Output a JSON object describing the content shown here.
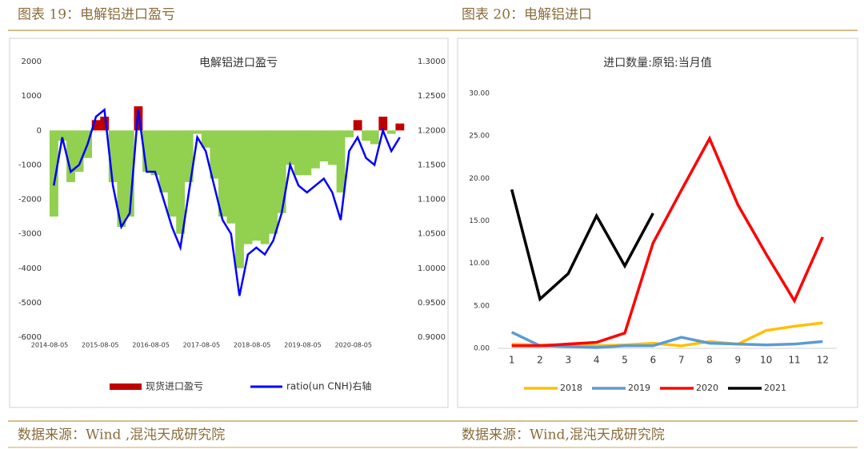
{
  "header": {
    "left": "图表 19：电解铝进口盈亏",
    "right": "图表 20：电解铝进口"
  },
  "footer": {
    "left": "数据来源：Wind ,混沌天成研究院",
    "right": "数据来源：Wind,混沌天成研究院"
  },
  "chart_data": [
    {
      "type": "bar-line",
      "title": "电解铝进口盈亏",
      "categories": [
        "2014-08-05",
        null,
        null,
        null,
        null,
        null,
        "2015-08-05",
        null,
        null,
        null,
        null,
        null,
        "2016-08-05",
        null,
        null,
        null,
        null,
        null,
        "2017-08-05",
        null,
        null,
        null,
        null,
        null,
        "2018-08-05",
        null,
        null,
        null,
        null,
        null,
        "2019-08-05",
        null,
        null,
        null,
        null,
        null,
        "2020-08-05",
        null,
        null,
        null,
        null,
        null
      ],
      "series": [
        {
          "name": "现货进口盈亏",
          "color": "#c00000",
          "negative_color": "#92d050",
          "values": [
            -2500,
            -300,
            -1500,
            -1200,
            -800,
            300,
            400,
            -1500,
            -2800,
            -2500,
            700,
            -1200,
            -1300,
            -1800,
            -2500,
            -3000,
            -1500,
            -100,
            -500,
            -1400,
            -2500,
            -2700,
            -4000,
            -3300,
            -3200,
            -3300,
            -3000,
            -2400,
            -1000,
            -1300,
            -1300,
            -1100,
            -900,
            -1000,
            -1800,
            -200,
            300,
            -300,
            -400,
            400,
            -100,
            200
          ]
        },
        {
          "name": "ratio(un CNH)右轴",
          "color": "#0000ff",
          "axis": "y2",
          "values": [
            1.12,
            1.19,
            1.14,
            1.15,
            1.18,
            1.22,
            1.23,
            1.12,
            1.06,
            1.08,
            1.23,
            1.14,
            1.14,
            1.1,
            1.06,
            1.03,
            1.11,
            1.19,
            1.17,
            1.12,
            1.07,
            1.05,
            0.96,
            1.02,
            1.03,
            1.02,
            1.04,
            1.08,
            1.15,
            1.12,
            1.11,
            1.12,
            1.13,
            1.11,
            1.07,
            1.17,
            1.19,
            1.16,
            1.15,
            1.2,
            1.17,
            1.19
          ]
        }
      ],
      "ylim": [
        -6000,
        2000
      ],
      "yticks": [
        -6000,
        -5000,
        -4000,
        -3000,
        -2000,
        -1000,
        0,
        1000,
        2000
      ],
      "y2lim": [
        0.9,
        1.3
      ],
      "y2ticks": [
        {
          "value": 0.9,
          "label": "0.9000"
        },
        {
          "value": 0.95,
          "label": "0.9500"
        },
        {
          "value": 1.0,
          "label": "1.0000"
        },
        {
          "value": 1.05,
          "label": "1.0500"
        },
        {
          "value": 1.1,
          "label": "1.1000"
        },
        {
          "value": 1.15,
          "label": "1.1500"
        },
        {
          "value": 1.2,
          "label": "1.2000"
        },
        {
          "value": 1.25,
          "label": "1.2500"
        },
        {
          "value": 1.3,
          "label": "1.3000"
        }
      ],
      "grid": false,
      "legend": "bottom"
    },
    {
      "type": "line",
      "title": "进口数量:原铝:当月值",
      "categories": [
        "1",
        "2",
        "3",
        "4",
        "5",
        "6",
        "7",
        "8",
        "9",
        "10",
        "11",
        "12"
      ],
      "series": [
        {
          "name": "2018",
          "color": "#ffc000",
          "values": [
            0.5,
            0.4,
            0.4,
            0.3,
            0.4,
            0.6,
            0.3,
            0.8,
            0.5,
            2.1,
            2.6,
            3.0
          ]
        },
        {
          "name": "2019",
          "color": "#5b9bd5",
          "values": [
            1.9,
            0.3,
            0.2,
            0.1,
            0.3,
            0.3,
            1.3,
            0.6,
            0.5,
            0.4,
            0.5,
            0.8
          ]
        },
        {
          "name": "2020",
          "color": "#ff0000",
          "values": [
            0.3,
            0.3,
            0.5,
            0.7,
            1.8,
            12.4,
            18.6,
            24.7,
            16.9,
            11.1,
            5.6,
            13.1
          ]
        },
        {
          "name": "2021",
          "color": "#000000",
          "values": [
            18.7,
            5.8,
            8.8,
            15.6,
            9.7,
            15.9,
            null,
            null,
            null,
            null,
            null,
            null
          ]
        }
      ],
      "ylim": [
        0,
        30
      ],
      "yticks": [
        {
          "value": 0,
          "label": "0.00"
        },
        {
          "value": 5,
          "label": "5.00"
        },
        {
          "value": 10,
          "label": "10.00"
        },
        {
          "value": 15,
          "label": "15.00"
        },
        {
          "value": 20,
          "label": "20.00"
        },
        {
          "value": 25,
          "label": "25.00"
        },
        {
          "value": 30,
          "label": "30.00"
        }
      ],
      "grid": false,
      "legend": "bottom"
    }
  ]
}
